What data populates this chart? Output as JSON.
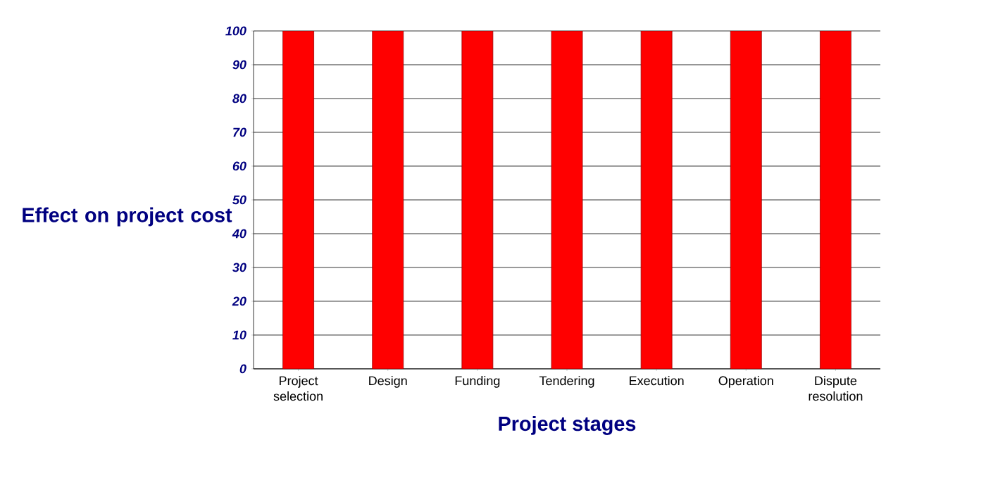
{
  "chart_data": {
    "type": "bar",
    "xlabel": "Project stages",
    "ylabel": "Effect on project cost",
    "categories": [
      "Project selection",
      "Design",
      "Funding",
      "Tendering",
      "Execution",
      "Operation",
      "Dispute resolution"
    ],
    "values": [
      100,
      100,
      100,
      100,
      100,
      100,
      100
    ],
    "color": "#ff0000",
    "ylim": [
      0,
      100
    ],
    "yticks": [
      0,
      10,
      20,
      30,
      40,
      50,
      60,
      70,
      80,
      90,
      100
    ],
    "grid": "y"
  }
}
